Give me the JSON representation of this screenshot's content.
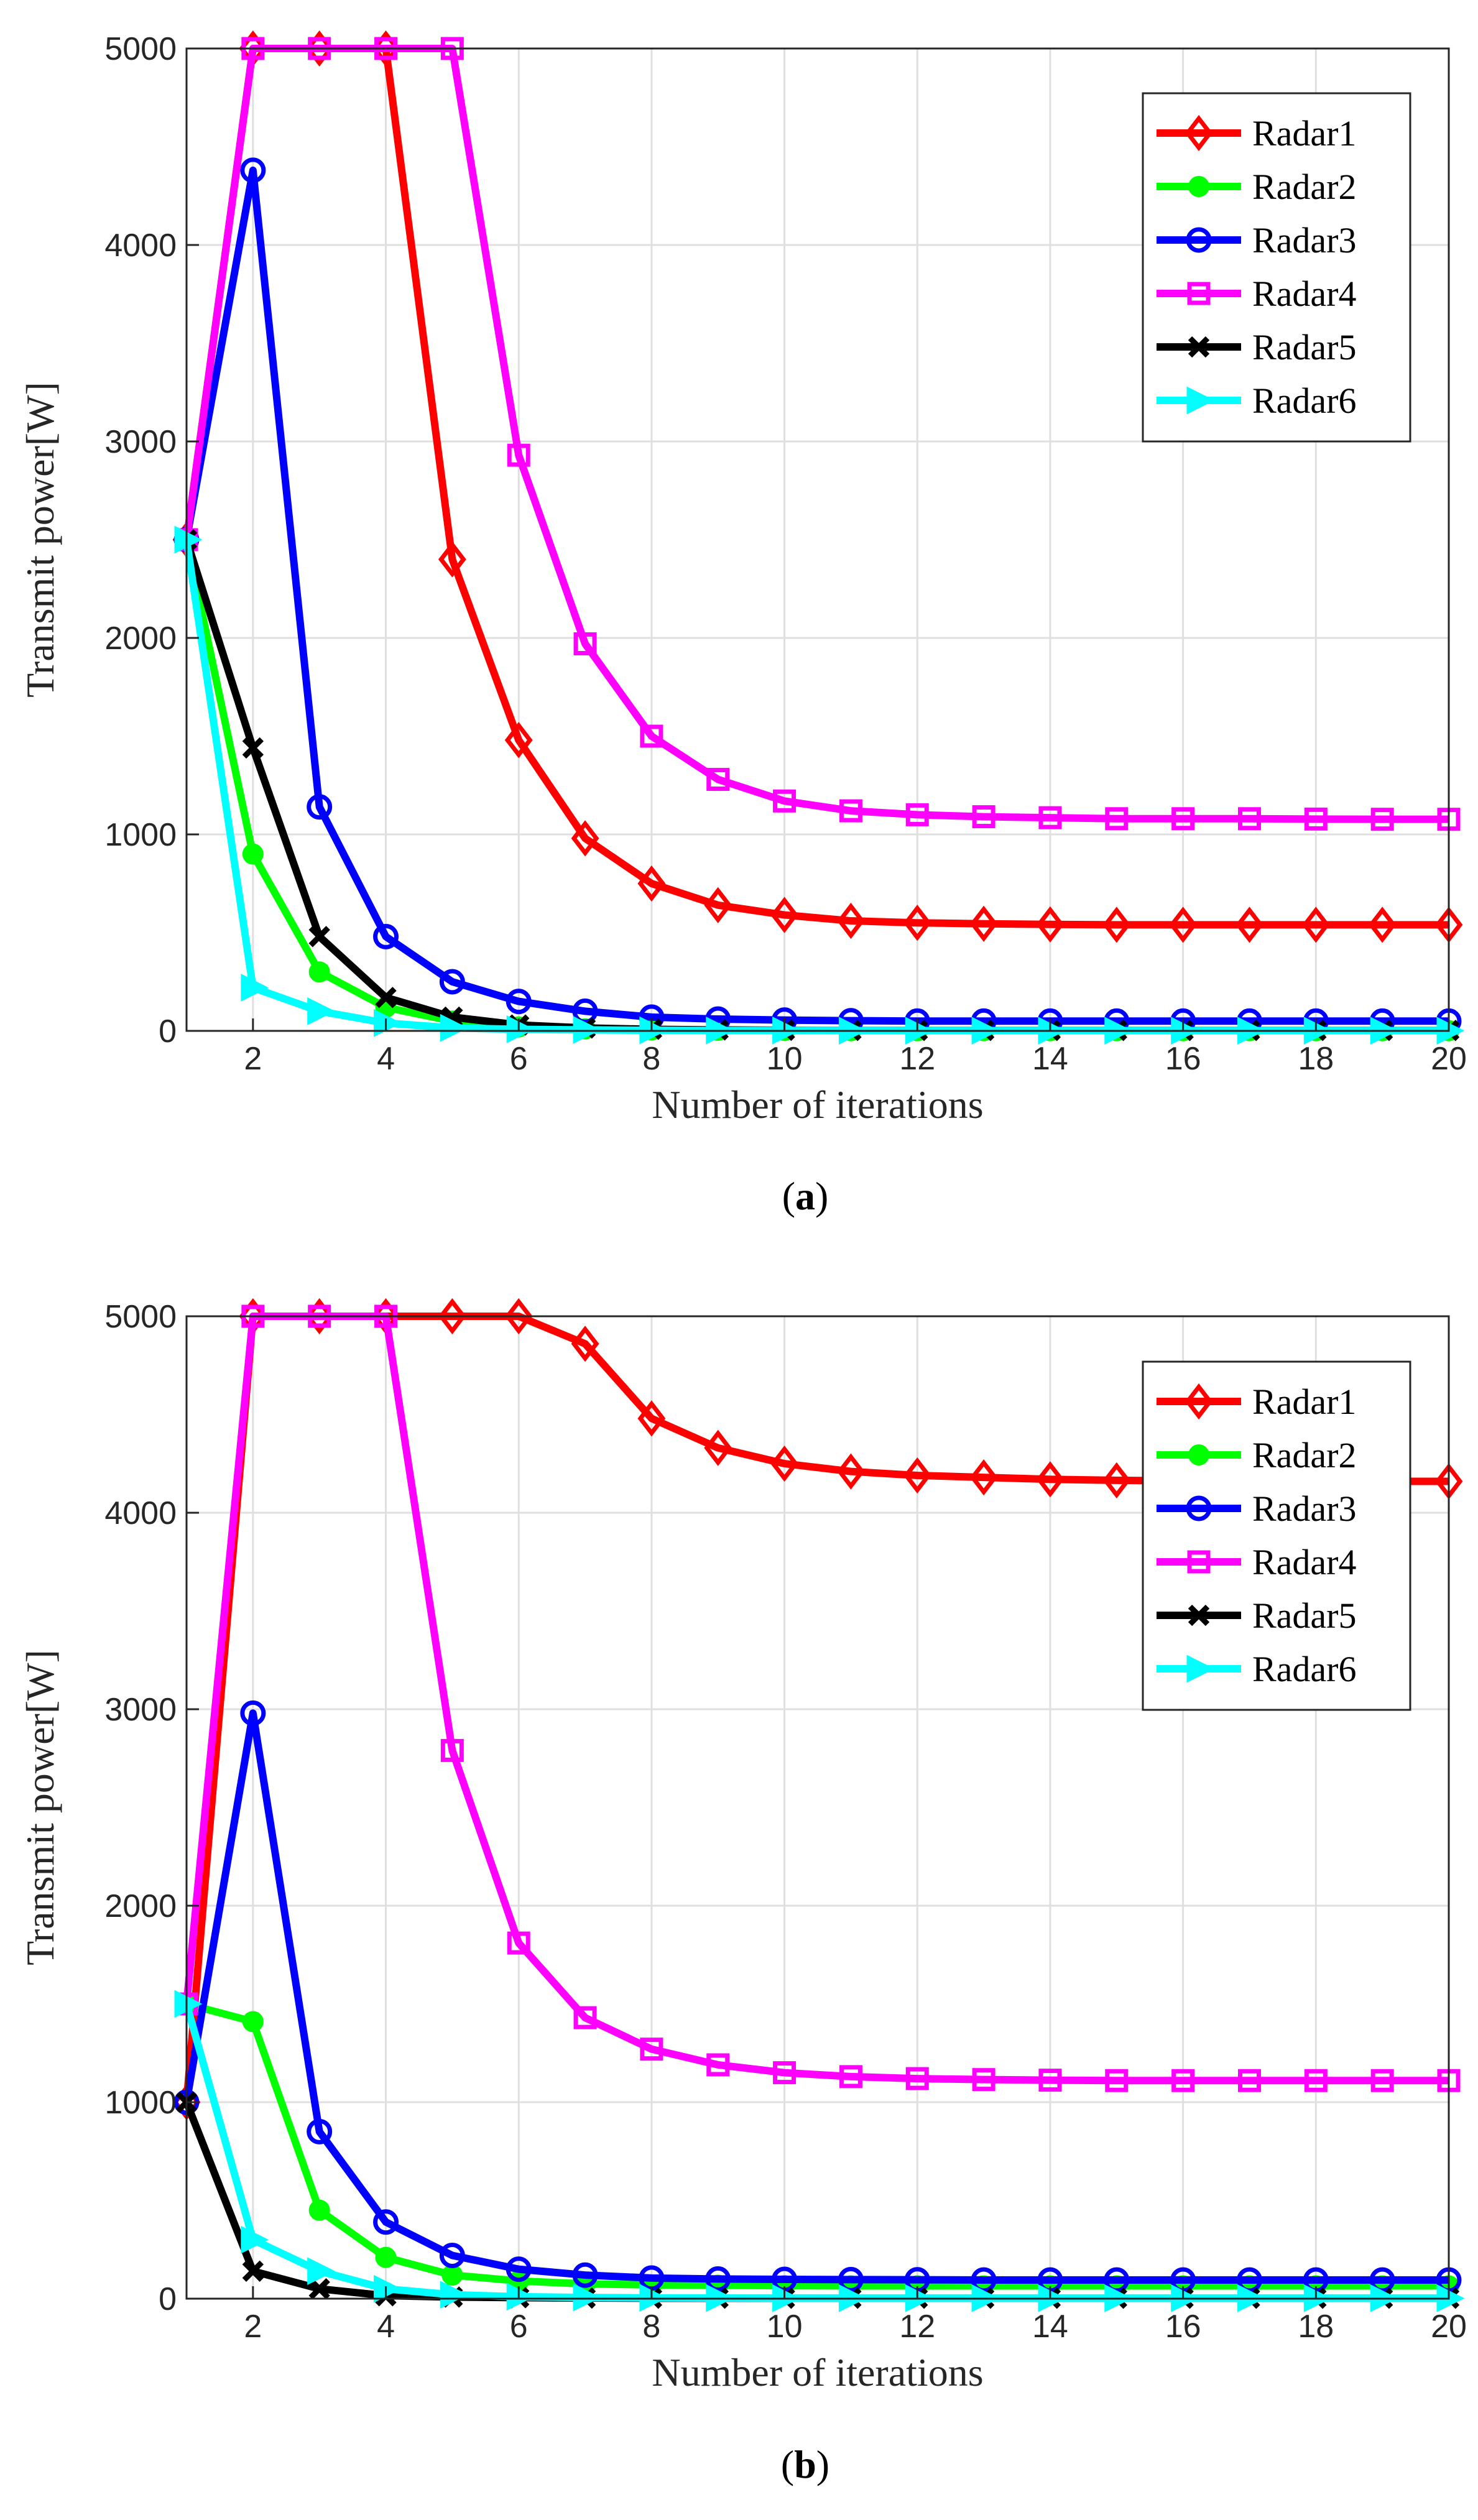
{
  "chart_data": [
    {
      "type": "line",
      "caption": "(a)",
      "xlabel": "Number of iterations",
      "ylabel": "Transmit power[W]",
      "xlim": [
        1,
        20
      ],
      "ylim": [
        0,
        5000
      ],
      "x_ticks": [
        2,
        4,
        6,
        8,
        10,
        12,
        14,
        16,
        18,
        20
      ],
      "y_ticks": [
        0,
        1000,
        2000,
        3000,
        4000,
        5000
      ],
      "grid": true,
      "legend_position": "top-right",
      "x": [
        1,
        2,
        3,
        4,
        5,
        6,
        7,
        8,
        9,
        10,
        11,
        12,
        13,
        14,
        15,
        16,
        17,
        18,
        19,
        20
      ],
      "series": [
        {
          "name": "Radar1",
          "color": "#ff0000",
          "marker": "diamond",
          "values": [
            2500,
            5000,
            5000,
            5000,
            2400,
            1480,
            980,
            750,
            640,
            590,
            560,
            550,
            545,
            542,
            540,
            540,
            540,
            540,
            540,
            540
          ]
        },
        {
          "name": "Radar2",
          "color": "#00ff00",
          "marker": "dot",
          "values": [
            2500,
            900,
            300,
            120,
            50,
            20,
            10,
            5,
            3,
            2,
            1,
            1,
            1,
            1,
            1,
            1,
            1,
            1,
            1,
            1
          ]
        },
        {
          "name": "Radar3",
          "color": "#0000ff",
          "marker": "circle",
          "values": [
            2500,
            4380,
            1140,
            480,
            250,
            150,
            100,
            70,
            60,
            55,
            52,
            50,
            50,
            50,
            50,
            50,
            50,
            50,
            50,
            50
          ]
        },
        {
          "name": "Radar4",
          "color": "#ff00ff",
          "marker": "square",
          "values": [
            2500,
            5000,
            5000,
            5000,
            5000,
            2930,
            1970,
            1500,
            1280,
            1170,
            1120,
            1100,
            1090,
            1085,
            1080,
            1080,
            1080,
            1078,
            1077,
            1077
          ]
        },
        {
          "name": "Radar5",
          "color": "#000000",
          "marker": "x",
          "values": [
            2500,
            1440,
            480,
            170,
            70,
            30,
            15,
            8,
            5,
            3,
            2,
            2,
            2,
            2,
            2,
            2,
            2,
            2,
            2,
            2
          ]
        },
        {
          "name": "Radar6",
          "color": "#00ffff",
          "marker": "triangle-right",
          "values": [
            2500,
            220,
            100,
            40,
            15,
            8,
            5,
            3,
            2,
            2,
            1,
            1,
            1,
            1,
            1,
            1,
            1,
            1,
            1,
            1
          ]
        }
      ]
    },
    {
      "type": "line",
      "caption": "(b)",
      "xlabel": "Number of iterations",
      "ylabel": "Transmit power[W]",
      "xlim": [
        1,
        20
      ],
      "ylim": [
        0,
        5000
      ],
      "x_ticks": [
        2,
        4,
        6,
        8,
        10,
        12,
        14,
        16,
        18,
        20
      ],
      "y_ticks": [
        0,
        1000,
        2000,
        3000,
        4000,
        5000
      ],
      "grid": true,
      "legend_position": "top-right",
      "x": [
        1,
        2,
        3,
        4,
        5,
        6,
        7,
        8,
        9,
        10,
        11,
        12,
        13,
        14,
        15,
        16,
        17,
        18,
        19,
        20
      ],
      "series": [
        {
          "name": "Radar1",
          "color": "#ff0000",
          "marker": "diamond",
          "values": [
            1000,
            5000,
            5000,
            5000,
            5000,
            5000,
            4860,
            4480,
            4330,
            4250,
            4210,
            4190,
            4180,
            4170,
            4165,
            4162,
            4160,
            4160,
            4160,
            4160
          ]
        },
        {
          "name": "Radar2",
          "color": "#00ff00",
          "marker": "dot",
          "values": [
            1500,
            1410,
            450,
            210,
            120,
            90,
            75,
            70,
            68,
            66,
            65,
            65,
            65,
            65,
            65,
            65,
            65,
            65,
            65,
            65
          ]
        },
        {
          "name": "Radar3",
          "color": "#0000ff",
          "marker": "circle",
          "values": [
            1000,
            2980,
            850,
            390,
            220,
            150,
            120,
            105,
            100,
            98,
            97,
            96,
            95,
            95,
            95,
            95,
            95,
            95,
            95,
            95
          ]
        },
        {
          "name": "Radar4",
          "color": "#ff00ff",
          "marker": "square",
          "values": [
            1500,
            5000,
            5000,
            5000,
            2790,
            1810,
            1430,
            1270,
            1190,
            1150,
            1130,
            1120,
            1115,
            1112,
            1110,
            1110,
            1110,
            1110,
            1110,
            1110
          ]
        },
        {
          "name": "Radar5",
          "color": "#000000",
          "marker": "x",
          "values": [
            1000,
            140,
            50,
            15,
            8,
            5,
            3,
            2,
            2,
            2,
            2,
            2,
            2,
            2,
            2,
            2,
            2,
            2,
            2,
            2
          ]
        },
        {
          "name": "Radar6",
          "color": "#00ffff",
          "marker": "triangle-right",
          "values": [
            1500,
            300,
            140,
            50,
            20,
            10,
            6,
            4,
            3,
            2,
            2,
            2,
            2,
            2,
            2,
            2,
            2,
            2,
            2,
            2
          ]
        }
      ]
    }
  ]
}
